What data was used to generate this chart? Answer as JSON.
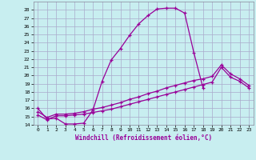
{
  "xlabel": "Windchill (Refroidissement éolien,°C)",
  "bg_color": "#c8eef0",
  "grid_color": "#aaaacc",
  "line_color": "#990099",
  "xlim": [
    -0.5,
    23.5
  ],
  "ylim": [
    14,
    29
  ],
  "yticks": [
    14,
    15,
    16,
    17,
    18,
    19,
    20,
    21,
    22,
    23,
    24,
    25,
    26,
    27,
    28
  ],
  "xticks": [
    0,
    1,
    2,
    3,
    4,
    5,
    6,
    7,
    8,
    9,
    10,
    11,
    12,
    13,
    14,
    15,
    16,
    17,
    18,
    19,
    20,
    21,
    22,
    23
  ],
  "curve1_x": [
    0,
    1,
    2,
    3,
    4,
    5,
    6,
    7,
    8,
    9,
    10,
    11,
    12,
    13,
    14,
    15,
    16,
    17,
    18
  ],
  "curve1_y": [
    16.0,
    14.7,
    14.8,
    14.1,
    14.1,
    14.2,
    15.8,
    19.3,
    21.9,
    23.3,
    24.9,
    26.3,
    27.3,
    28.1,
    28.2,
    28.2,
    27.6,
    22.8,
    18.5
  ],
  "curve2_x": [
    0,
    1,
    2,
    3,
    4,
    5,
    6,
    7,
    8,
    9,
    10,
    11,
    12,
    13,
    14,
    15,
    16,
    17,
    18,
    19,
    20,
    21,
    22,
    23
  ],
  "curve2_y": [
    15.2,
    14.6,
    15.1,
    15.1,
    15.2,
    15.3,
    15.5,
    15.7,
    15.9,
    16.2,
    16.5,
    16.8,
    17.1,
    17.4,
    17.7,
    18.0,
    18.3,
    18.6,
    18.9,
    19.2,
    21.0,
    19.8,
    19.3,
    18.5
  ],
  "curve3_x": [
    0,
    1,
    2,
    3,
    4,
    5,
    6,
    7,
    8,
    9,
    10,
    11,
    12,
    13,
    14,
    15,
    16,
    17,
    18,
    19,
    20,
    21,
    22,
    23
  ],
  "curve3_y": [
    15.6,
    14.9,
    15.3,
    15.3,
    15.4,
    15.6,
    15.9,
    16.1,
    16.4,
    16.7,
    17.1,
    17.4,
    17.8,
    18.1,
    18.5,
    18.8,
    19.1,
    19.4,
    19.6,
    19.9,
    21.3,
    20.2,
    19.6,
    18.8
  ]
}
